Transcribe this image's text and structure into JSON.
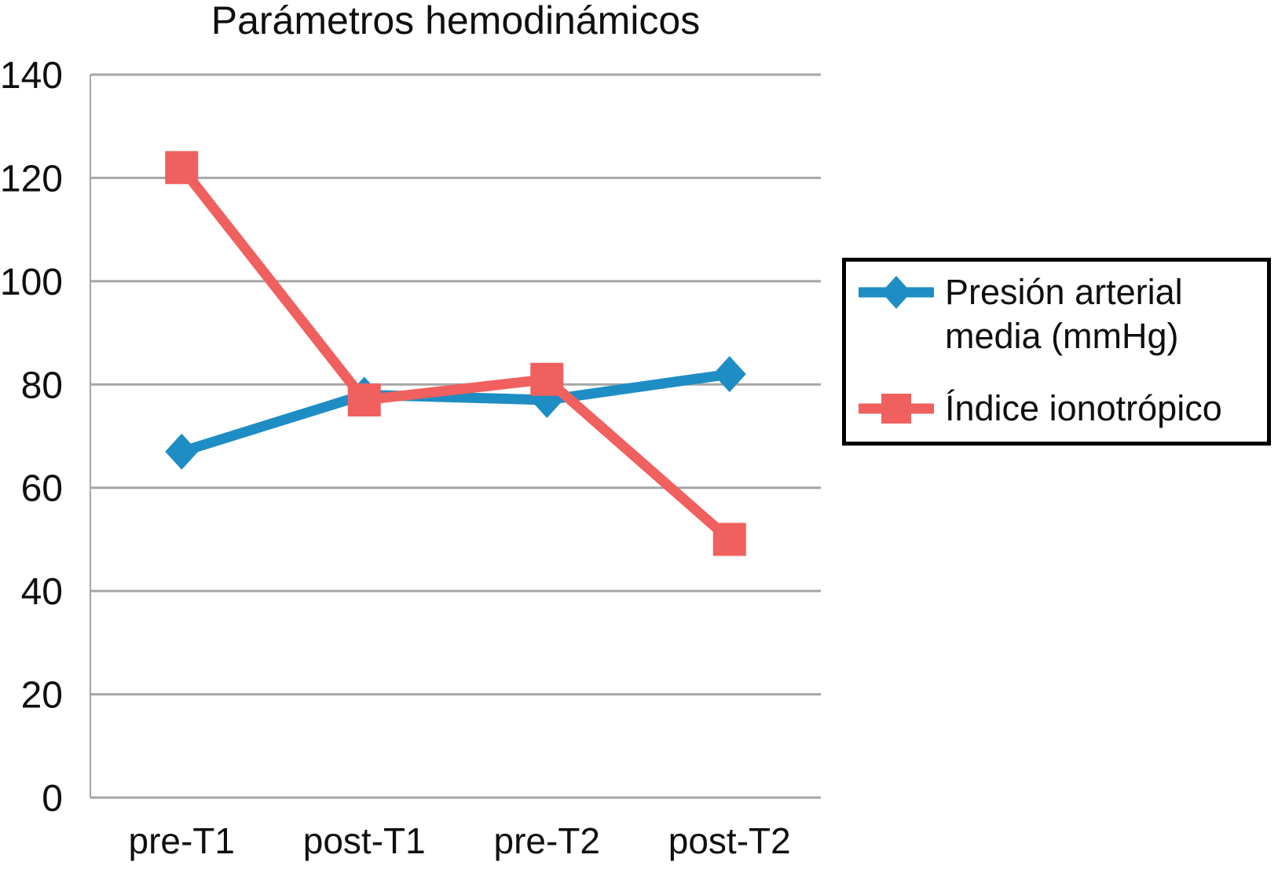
{
  "chart_data": {
    "type": "line",
    "title": "Parámetros hemodinámicos",
    "categories": [
      "pre-T1",
      "post-T1",
      "pre-T2",
      "post-T2"
    ],
    "series": [
      {
        "name": "Presión arterial media (mmHg)",
        "marker": "diamond",
        "color": "#1e8dc4",
        "values": [
          67,
          78,
          77,
          82
        ]
      },
      {
        "name": "Índice ionotrópico",
        "marker": "square",
        "color": "#f0605e",
        "values": [
          122,
          77,
          81,
          50
        ]
      }
    ],
    "ylim": [
      0,
      140
    ],
    "yticks": [
      0,
      20,
      40,
      60,
      80,
      100,
      120,
      140
    ],
    "xlabel": "",
    "ylabel": "",
    "grid": true,
    "legend_position": "right",
    "grid_color": "#a6a6a6",
    "text_color": "#0f0f0f"
  }
}
